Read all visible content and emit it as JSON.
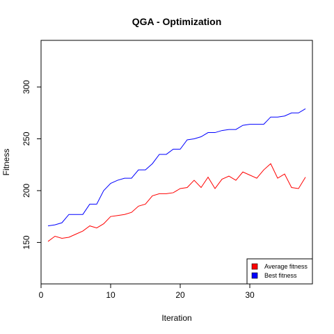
{
  "chart_data": {
    "type": "line",
    "title": "QGA - Optimization",
    "xlabel": "Iteration",
    "ylabel": "Fitness",
    "xlim": [
      0,
      39
    ],
    "ylim": [
      110,
      345
    ],
    "xticks": [
      0,
      10,
      20,
      30
    ],
    "yticks": [
      150,
      200,
      250,
      300
    ],
    "legend_position": "bottom-right",
    "x": [
      1,
      2,
      3,
      4,
      5,
      6,
      7,
      8,
      9,
      10,
      11,
      12,
      13,
      14,
      15,
      16,
      17,
      18,
      19,
      20,
      21,
      22,
      23,
      24,
      25,
      26,
      27,
      28,
      29,
      30,
      31,
      32,
      33,
      34,
      35,
      36,
      37,
      38
    ],
    "series": [
      {
        "name": "Average fitness",
        "color": "#ff0000",
        "values": [
          151,
          156,
          154,
          155,
          158,
          161,
          166,
          164,
          168,
          175,
          176,
          177,
          179,
          185,
          187,
          195,
          197,
          197,
          198,
          202,
          203,
          210,
          203,
          213,
          202,
          211,
          214,
          210,
          218,
          215,
          212,
          220,
          226,
          212,
          216,
          203,
          202,
          213
        ]
      },
      {
        "name": "Best fitness",
        "color": "#0000ff",
        "values": [
          166,
          167,
          169,
          177,
          177,
          177,
          187,
          187,
          200,
          207,
          210,
          212,
          212,
          220,
          220,
          226,
          235,
          235,
          240,
          240,
          249,
          250,
          252,
          256,
          256,
          258,
          259,
          259,
          263,
          264,
          264,
          264,
          271,
          271,
          272,
          275,
          275,
          279
        ]
      }
    ]
  }
}
